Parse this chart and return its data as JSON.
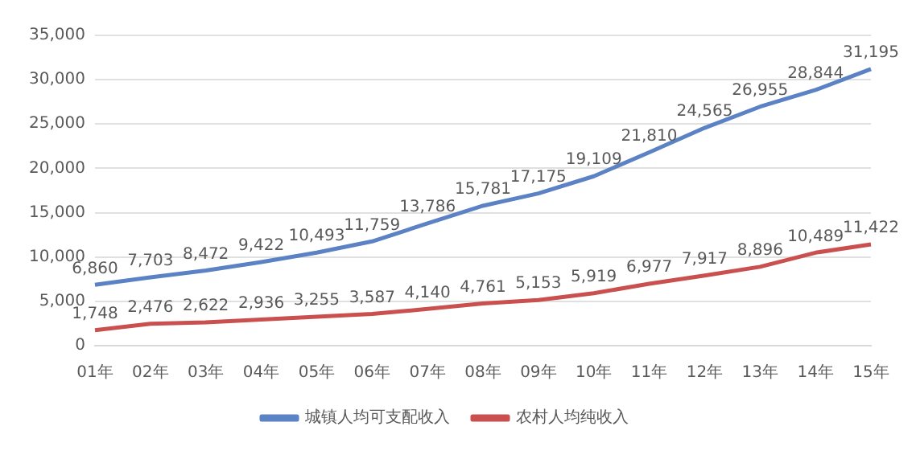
{
  "chart_data": {
    "type": "line",
    "categories": [
      "01年",
      "02年",
      "03年",
      "04年",
      "05年",
      "06年",
      "07年",
      "08年",
      "09年",
      "10年",
      "11年",
      "12年",
      "13年",
      "14年",
      "15年"
    ],
    "series": [
      {
        "name": "城镇人均可支配收入",
        "color": "#5b82c4",
        "values": [
          6860,
          7703,
          8472,
          9422,
          10493,
          11759,
          13786,
          15781,
          17175,
          19109,
          21810,
          24565,
          26955,
          28844,
          31195
        ],
        "value_labels": [
          "6,860",
          "7,703",
          "8,472",
          "9,422",
          "10,493",
          "11,759",
          "13,786",
          "15,781",
          "17,175",
          "19,109",
          "21,810",
          "24,565",
          "26,955",
          "28,844",
          "31,195"
        ]
      },
      {
        "name": "农村人均纯收入",
        "color": "#c9504e",
        "values": [
          1748,
          2476,
          2622,
          2936,
          3255,
          3587,
          4140,
          4761,
          5153,
          5919,
          6977,
          7917,
          8896,
          10489,
          11422
        ],
        "value_labels": [
          "1,748",
          "2,476",
          "2,622",
          "2,936",
          "3,255",
          "3,587",
          "4,140",
          "4,761",
          "5,153",
          "5,919",
          "6,977",
          "7,917",
          "8,896",
          "10,489",
          "11,422"
        ]
      }
    ],
    "ylim": [
      0,
      35000
    ],
    "yticks": [
      0,
      {
        "value": 5000,
        "label": "5,000"
      },
      {
        "value": 10000,
        "label": "10,000"
      },
      {
        "value": 15000,
        "label": "15,000"
      },
      {
        "value": 20000,
        "label": "20,000"
      },
      {
        "value": 25000,
        "label": "25,000"
      },
      {
        "value": 30000,
        "label": "30,000"
      },
      {
        "value": 35000,
        "label": "35,000"
      }
    ],
    "grid": "y",
    "legend": "bottom",
    "marker": "none",
    "line_style": "solid"
  }
}
